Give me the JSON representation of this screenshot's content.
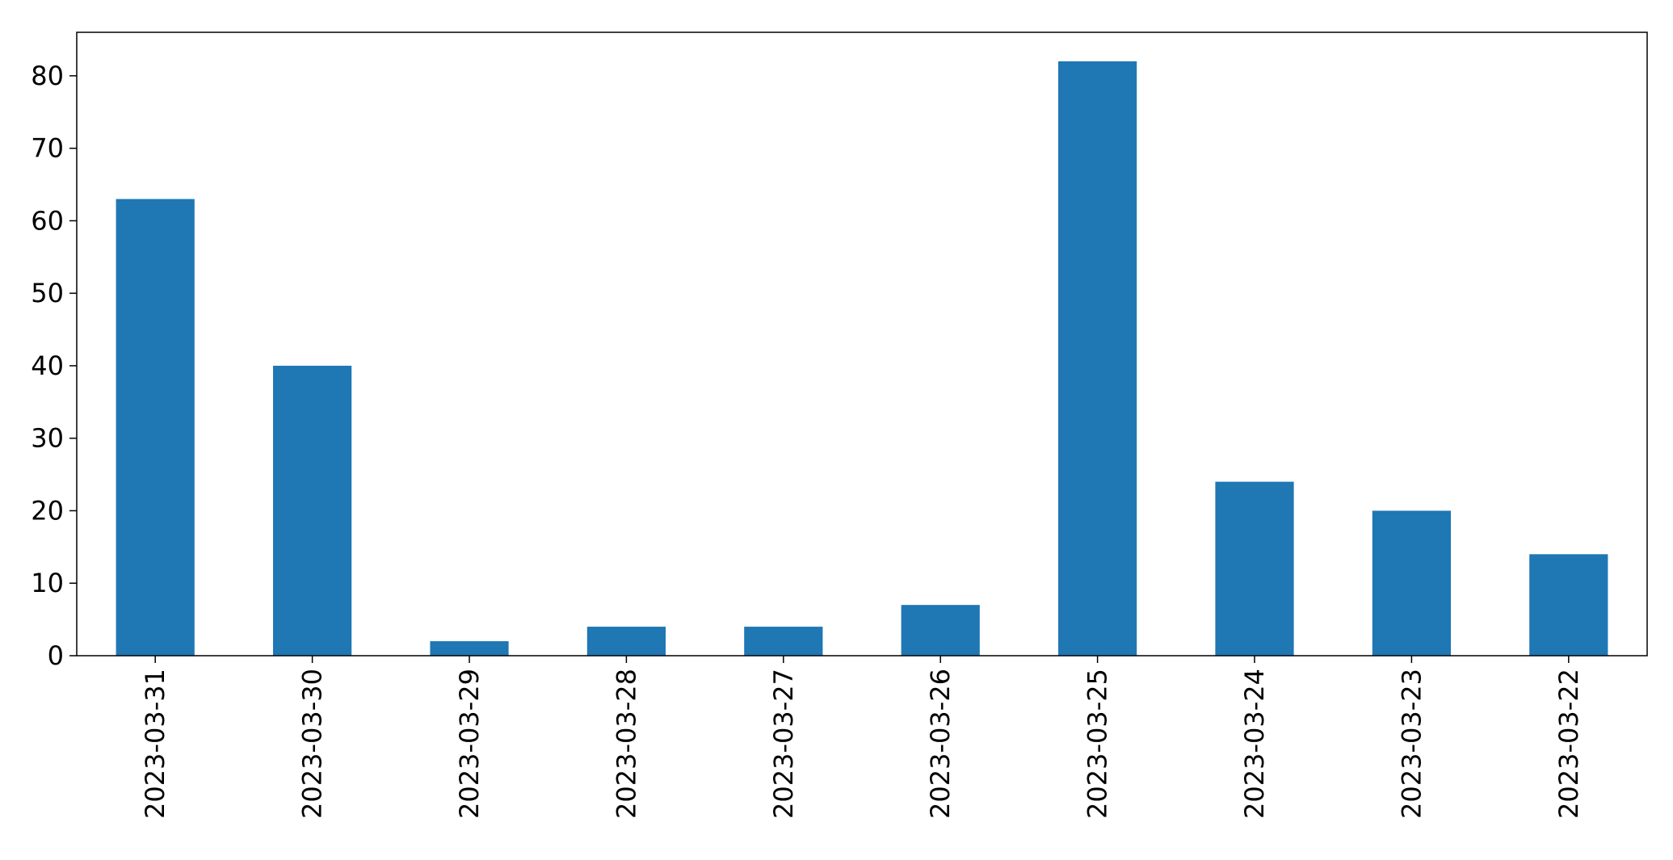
{
  "chart_data": {
    "type": "bar",
    "title": "",
    "xlabel": "",
    "ylabel": "",
    "categories": [
      "2023-03-31",
      "2023-03-30",
      "2023-03-29",
      "2023-03-28",
      "2023-03-27",
      "2023-03-26",
      "2023-03-25",
      "2023-03-24",
      "2023-03-23",
      "2023-03-22"
    ],
    "values": [
      63,
      40,
      2,
      4,
      4,
      7,
      82,
      24,
      20,
      14
    ],
    "ylim": [
      0,
      86
    ],
    "yticks": [
      0,
      10,
      20,
      30,
      40,
      50,
      60,
      70,
      80
    ],
    "grid": false,
    "legend": "none",
    "bar_color": "#1f77b4"
  }
}
